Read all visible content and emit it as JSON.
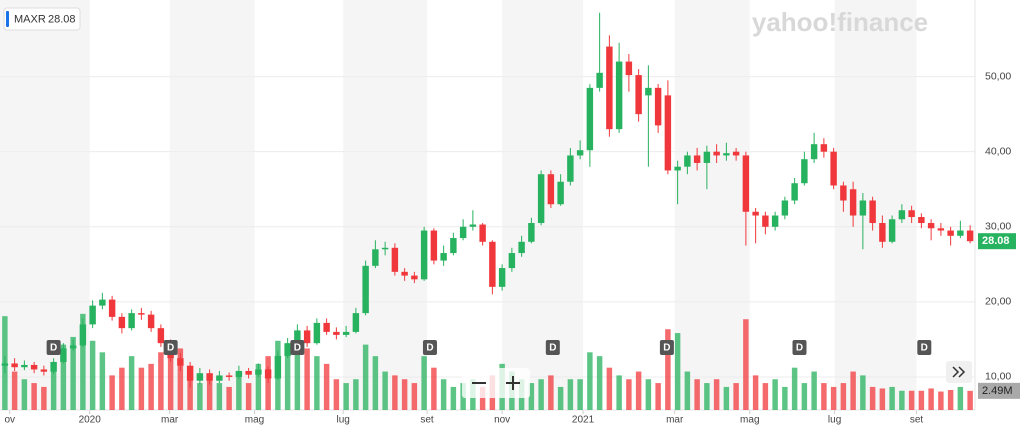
{
  "chart_data": {
    "type": "candlestick",
    "symbol": "MAXR",
    "brand": "yahoo!finance",
    "up_color": "#26b25e",
    "down_color": "#f0383c",
    "open": [
      11.5,
      11.8,
      11.3,
      11.6,
      11.0,
      10.7,
      12.0,
      13.8,
      14.2,
      17.0,
      19.5,
      20.3,
      18.0,
      16.5,
      18.5,
      18.3,
      16.5,
      14.5,
      12.5,
      11.5,
      9.5,
      10.5,
      9.5,
      10.2,
      10.0,
      10.8,
      10.3,
      11.0,
      9.8,
      12.8,
      14.5,
      16.2,
      14.5,
      17.2,
      16.0,
      15.6,
      16.0,
      18.5,
      24.8,
      27.0,
      27.2,
      24.0,
      23.5,
      23.0,
      29.5,
      25.5,
      26.5,
      28.5,
      30.0,
      30.3,
      28.0,
      22.0,
      24.5,
      26.5,
      28.0,
      30.5,
      37.0,
      33.0,
      36.0,
      39.5,
      40.2,
      48.5,
      54.0,
      43.0,
      52.0,
      50.2,
      47.5,
      48.5,
      47.5,
      37.5,
      38.0,
      39.5,
      38.5,
      40.0,
      39.5,
      40.0,
      39.5,
      32.0,
      31.5,
      30.0,
      31.5,
      33.5,
      35.8,
      39.0,
      41.0,
      40.0,
      35.5,
      35.0,
      31.5,
      33.5,
      30.5,
      28.0,
      31.0,
      32.2,
      31.3,
      30.5,
      29.8,
      29.5,
      28.8,
      29.5
    ],
    "high": [
      12.8,
      12.5,
      12.2,
      12.0,
      11.5,
      12.5,
      14.5,
      15.0,
      17.8,
      20.2,
      21.2,
      20.8,
      18.5,
      19.0,
      19.2,
      18.8,
      17.0,
      15.0,
      13.2,
      12.0,
      11.2,
      11.0,
      10.8,
      10.6,
      11.5,
      11.2,
      11.8,
      11.4,
      13.5,
      15.2,
      17.0,
      16.8,
      17.8,
      17.8,
      16.6,
      16.8,
      19.2,
      25.5,
      28.2,
      28.0,
      27.8,
      24.5,
      24.0,
      30.0,
      29.8,
      27.5,
      29.2,
      31.0,
      32.2,
      30.5,
      28.2,
      25.0,
      27.2,
      28.8,
      31.2,
      37.5,
      37.5,
      37.0,
      40.5,
      41.5,
      49.0,
      58.5,
      55.5,
      54.5,
      53.0,
      51.0,
      51.5,
      49.0,
      49.5,
      38.8,
      40.0,
      40.5,
      40.8,
      41.0,
      41.2,
      40.5,
      40.0,
      32.5,
      32.0,
      32.0,
      34.0,
      36.5,
      40.0,
      42.5,
      41.8,
      40.5,
      36.0,
      36.0,
      34.5,
      34.0,
      31.5,
      31.5,
      33.0,
      32.8,
      31.8,
      31.0,
      30.5,
      30.0,
      30.8,
      30.2
    ],
    "low": [
      10.5,
      10.8,
      10.9,
      10.5,
      10.2,
      10.4,
      11.8,
      13.5,
      14.0,
      16.5,
      19.0,
      17.5,
      15.8,
      16.2,
      17.6,
      16.0,
      14.0,
      12.0,
      10.8,
      8.6,
      9.0,
      9.0,
      9.2,
      9.5,
      9.8,
      9.8,
      10.0,
      9.2,
      9.6,
      12.5,
      14.2,
      14.0,
      14.3,
      15.6,
      15.0,
      15.3,
      15.8,
      18.2,
      24.5,
      26.2,
      23.5,
      22.8,
      22.5,
      22.8,
      25.0,
      24.8,
      26.2,
      28.2,
      29.5,
      27.5,
      21.0,
      21.5,
      24.0,
      26.0,
      27.8,
      30.2,
      32.5,
      32.8,
      35.5,
      39.0,
      38.0,
      48.0,
      42.0,
      42.5,
      48.0,
      44.0,
      38.0,
      42.5,
      37.0,
      33.0,
      37.0,
      37.5,
      35.0,
      38.5,
      38.8,
      38.8,
      27.5,
      27.8,
      29.0,
      29.5,
      31.0,
      33.0,
      35.5,
      38.5,
      39.2,
      35.0,
      32.0,
      30.0,
      27.0,
      29.5,
      27.2,
      27.8,
      30.5,
      30.5,
      29.8,
      28.2,
      28.8,
      27.5,
      28.5,
      27.8
    ],
    "close": [
      11.8,
      11.3,
      11.6,
      11.0,
      10.7,
      12.0,
      13.8,
      14.2,
      17.0,
      19.5,
      20.3,
      18.0,
      16.5,
      18.5,
      18.3,
      16.5,
      14.5,
      12.5,
      11.5,
      9.5,
      10.5,
      9.5,
      10.2,
      10.0,
      10.8,
      10.3,
      11.0,
      9.8,
      12.8,
      14.5,
      16.2,
      14.5,
      17.2,
      16.0,
      15.6,
      16.0,
      18.5,
      24.8,
      27.0,
      27.2,
      24.0,
      23.5,
      23.0,
      29.5,
      25.5,
      26.5,
      28.5,
      30.0,
      30.3,
      28.0,
      22.0,
      24.5,
      26.5,
      28.0,
      30.5,
      37.0,
      33.0,
      36.0,
      39.5,
      40.2,
      48.5,
      50.5,
      43.0,
      52.0,
      50.2,
      45.0,
      48.5,
      43.5,
      37.5,
      38.0,
      39.5,
      38.5,
      40.0,
      39.5,
      39.8,
      39.5,
      32.0,
      31.5,
      30.0,
      31.5,
      33.5,
      35.8,
      39.0,
      41.0,
      40.0,
      35.5,
      33.5,
      31.5,
      33.5,
      30.5,
      28.0,
      31.0,
      32.2,
      31.3,
      30.5,
      29.8,
      29.5,
      28.8,
      29.5,
      28.08
    ],
    "volume": [
      12.2,
      5,
      4,
      3.5,
      3,
      6,
      8.5,
      9.5,
      12.5,
      9,
      7.5,
      4.5,
      5.5,
      7,
      5.5,
      6,
      7.5,
      9,
      8,
      5,
      3.5,
      4,
      3.5,
      3,
      5,
      3.5,
      6,
      7,
      9,
      8,
      7.5,
      8,
      7,
      6,
      4,
      3.5,
      4,
      8.5,
      7,
      5,
      4.5,
      4,
      3.5,
      7,
      5.5,
      4,
      3,
      3.5,
      4,
      3,
      4.5,
      6,
      5,
      4,
      3.5,
      4,
      4.5,
      3,
      4,
      4,
      7.5,
      7,
      5.5,
      4.5,
      4,
      5,
      4,
      3.5,
      10.5,
      10,
      5,
      4,
      3.5,
      4,
      3,
      3.5,
      11.8,
      4.5,
      3.5,
      4,
      3,
      5.5,
      3.5,
      5,
      3.5,
      3,
      3.5,
      5,
      4.5,
      3,
      2.8,
      3,
      2.5,
      2.5,
      2.5,
      2.8,
      2.4,
      2.6,
      3,
      2.49
    ],
    "last_volume_label": "2.49M",
    "volume_lim": [
      0,
      13
    ],
    "events": [
      {
        "x": 5,
        "label": "D"
      },
      {
        "x": 17,
        "label": "D"
      },
      {
        "x": 30,
        "label": "D"
      },
      {
        "x": 43.6,
        "label": "D"
      },
      {
        "x": 56.2,
        "label": "D"
      },
      {
        "x": 67.9,
        "label": "D"
      },
      {
        "x": 81.5,
        "label": "D"
      },
      {
        "x": 94.3,
        "label": "D"
      }
    ],
    "xlim": [
      -0.5,
      99.5
    ],
    "xticks": [
      {
        "value": 0.5,
        "label": "ov"
      },
      {
        "value": 8.7,
        "label": "2020"
      },
      {
        "value": 16.9,
        "label": "mar"
      },
      {
        "value": 25.6,
        "label": "mag"
      },
      {
        "value": 34.7,
        "label": "lug"
      },
      {
        "value": 43.3,
        "label": "set"
      },
      {
        "value": 51,
        "label": "nov"
      },
      {
        "value": 59.3,
        "label": "2021"
      },
      {
        "value": 68.7,
        "label": "mar"
      },
      {
        "value": 76.4,
        "label": "mag"
      },
      {
        "value": 85.1,
        "label": "lug"
      },
      {
        "value": 93.5,
        "label": "set"
      }
    ],
    "ylim": [
      5.6,
      60.2
    ],
    "yticks": [
      {
        "value": 10,
        "label": "10,00"
      },
      {
        "value": 20,
        "label": "20,00"
      },
      {
        "value": 30,
        "label": "30,00"
      },
      {
        "value": 40,
        "label": "40,00"
      },
      {
        "value": 50,
        "label": "50,00"
      }
    ]
  }
}
